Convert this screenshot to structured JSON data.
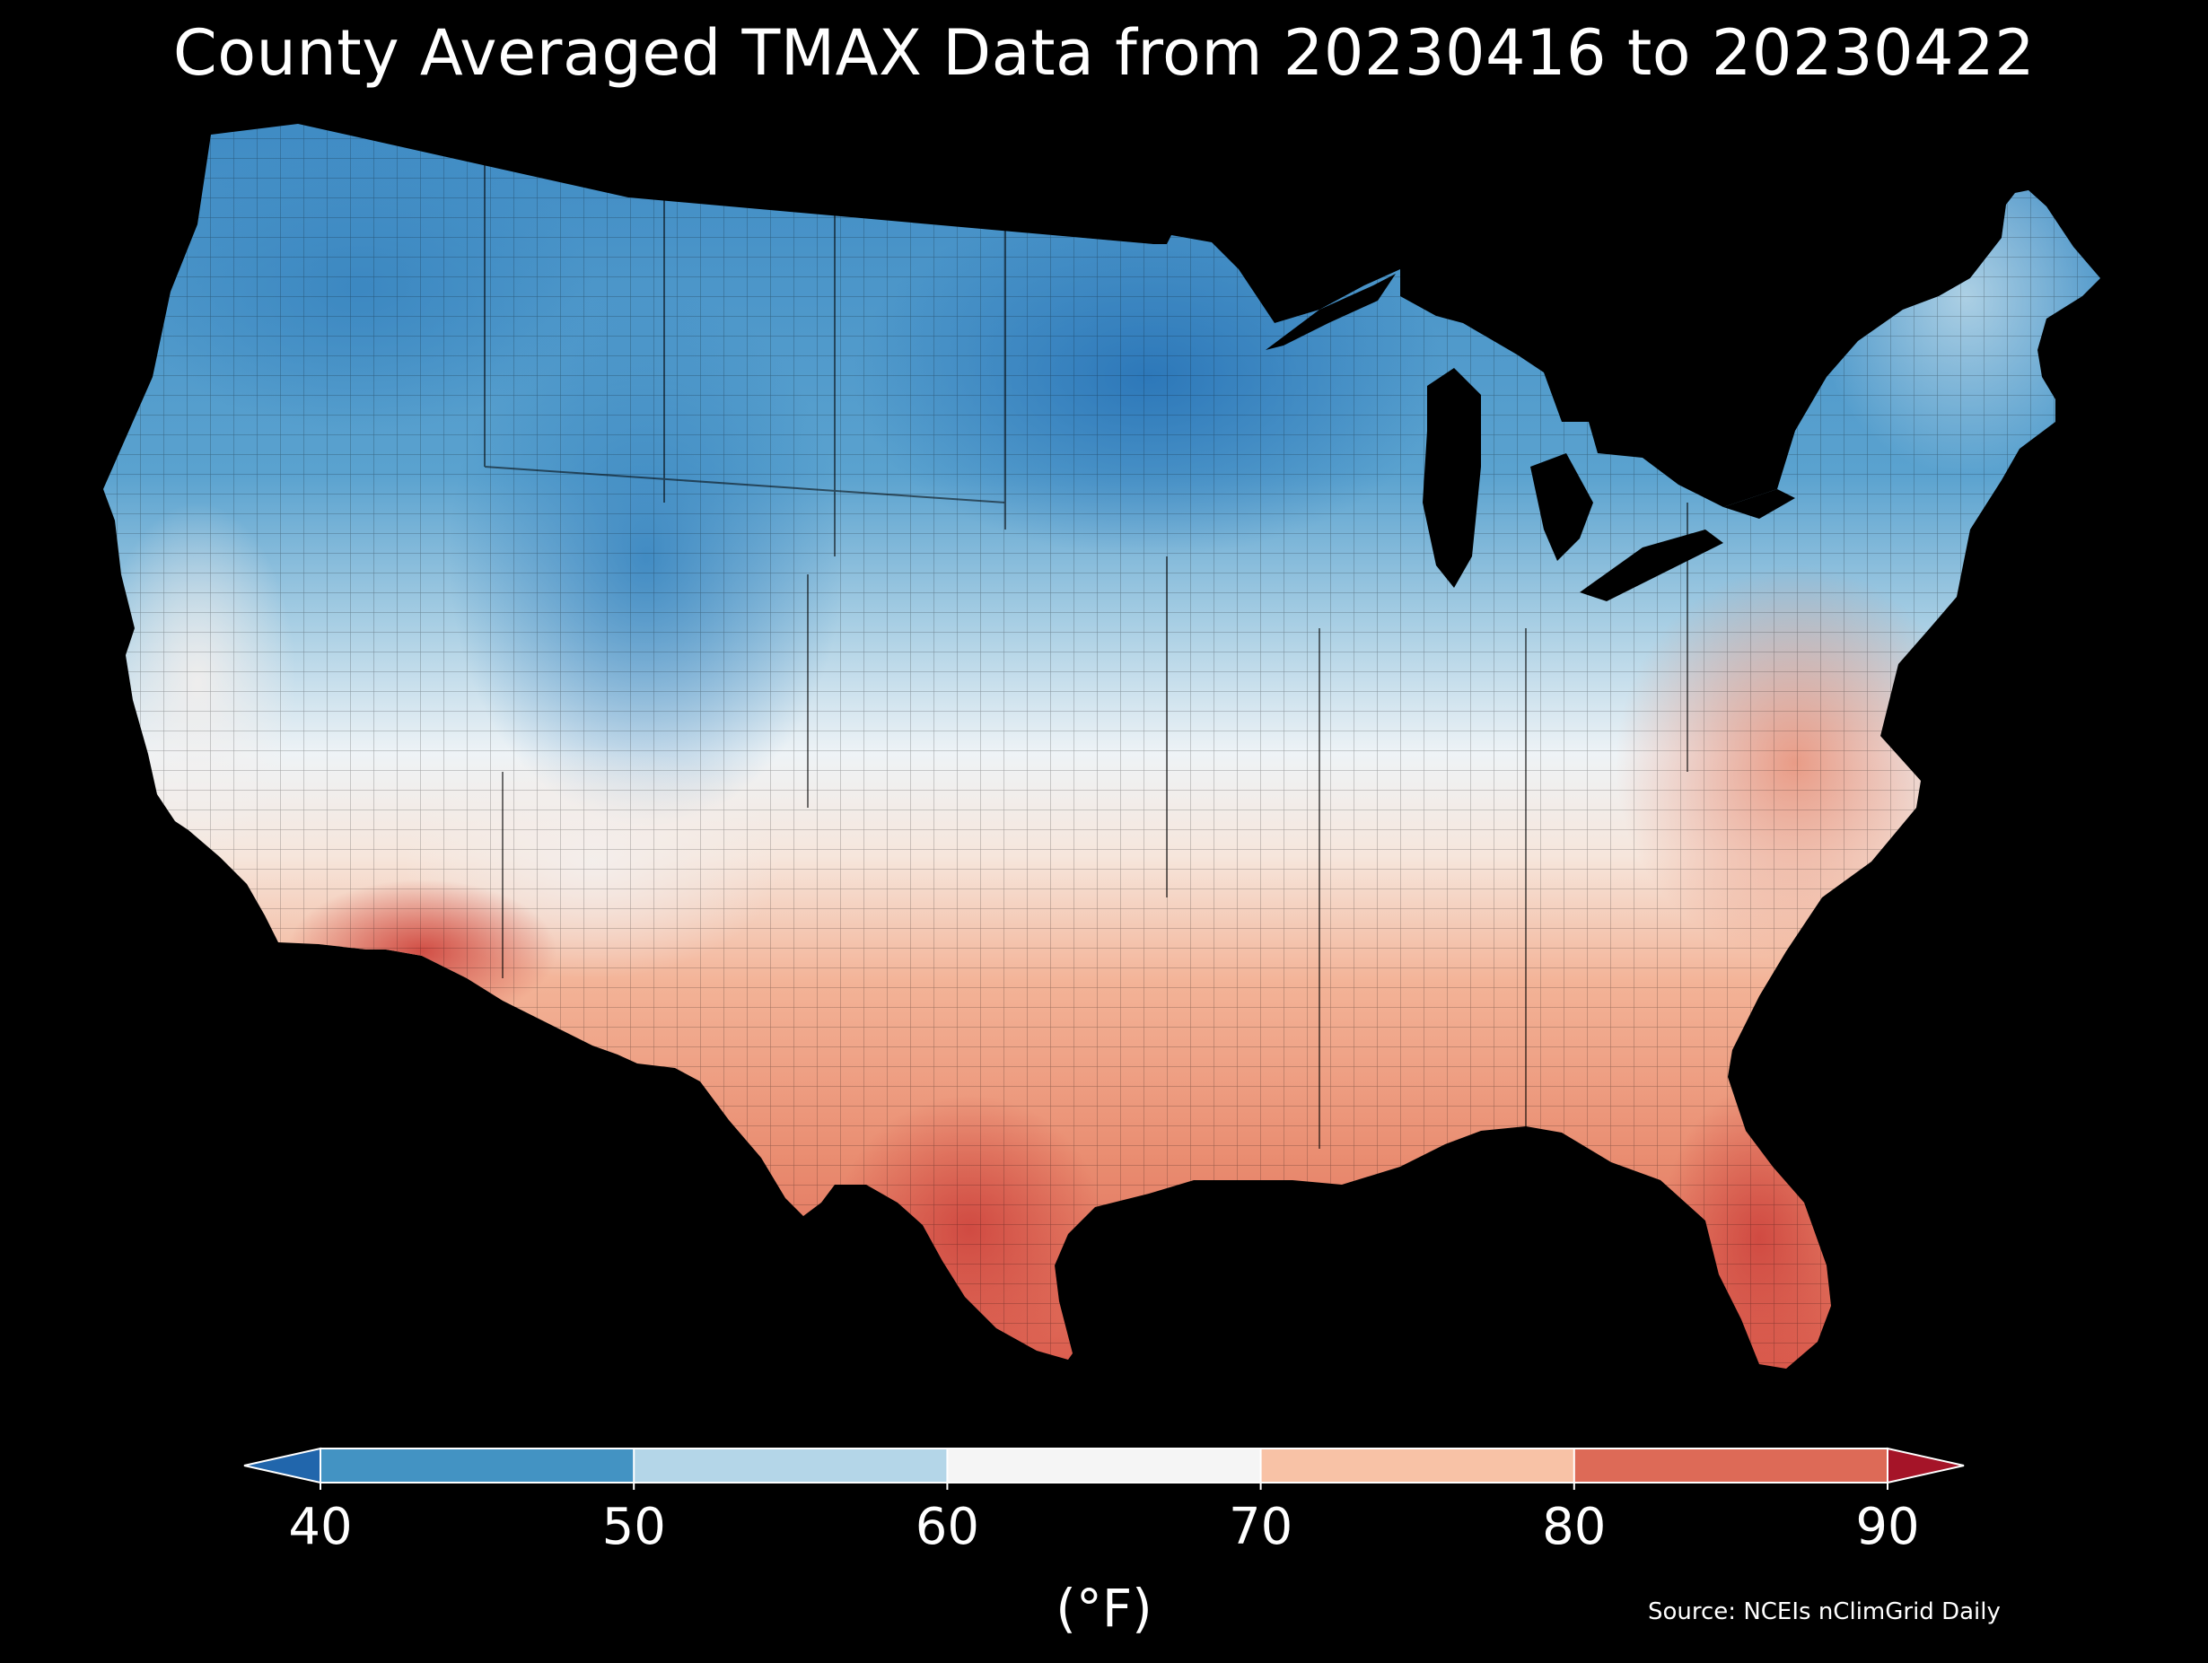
{
  "title": "County Averaged TMAX Data from 20230416 to 20230422",
  "source": "Source: NCEIs nClimGrid Daily",
  "colorbar": {
    "unit": "(°F)",
    "ticks": [
      "40",
      "50",
      "60",
      "70",
      "80",
      "90"
    ],
    "bins": [
      {
        "range": [
          40,
          50
        ],
        "color": "#4393c3"
      },
      {
        "range": [
          50,
          60
        ],
        "color": "#b4d6e8"
      },
      {
        "range": [
          60,
          70
        ],
        "color": "#f5f5f5"
      },
      {
        "range": [
          70,
          80
        ],
        "color": "#f8c2a6"
      },
      {
        "range": [
          80,
          90
        ],
        "color": "#dd6a57"
      }
    ],
    "under_color": "#2166ac",
    "over_color": "#a51428",
    "extend": "both"
  },
  "map": {
    "region": "Contiguous United States",
    "variable": "TMAX",
    "units": "°F",
    "background": "#000000",
    "boundaries": "county",
    "pattern": "coolest (40s °F) in northern Plains, Upper Midwest and Rockies; warmest (80s–90 °F) in south Texas, southern Arizona and south Florida"
  }
}
